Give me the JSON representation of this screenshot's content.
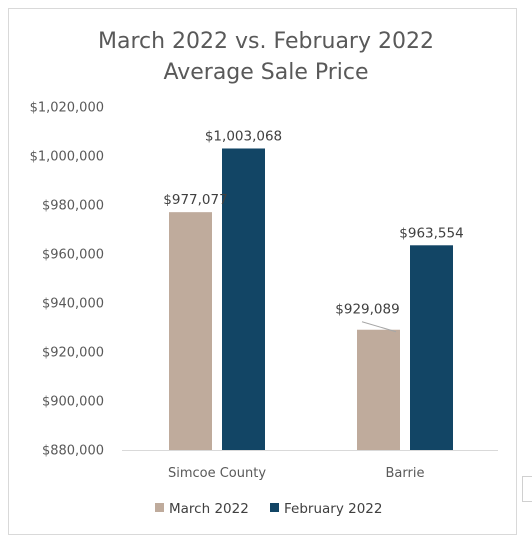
{
  "chart_data": {
    "type": "bar",
    "title_lines": [
      "March 2022 vs. February 2022",
      "Average Sale Price"
    ],
    "categories": [
      "Simcoe County",
      "Barrie"
    ],
    "series": [
      {
        "name": "March 2022",
        "color": "#bfab9c",
        "values": [
          977077,
          929089
        ],
        "labels": [
          "$977,077",
          "$929,089"
        ]
      },
      {
        "name": "February 2022",
        "color": "#124565",
        "values": [
          1003068,
          963554
        ],
        "labels": [
          "$1,003,068",
          "$963,554"
        ]
      }
    ],
    "ylim": [
      880000,
      1020000
    ],
    "y_ticks": [
      880000,
      900000,
      920000,
      940000,
      960000,
      980000,
      1000000,
      1020000
    ],
    "y_tick_labels": [
      "$880,000",
      "$900,000",
      "$920,000",
      "$940,000",
      "$960,000",
      "$980,000",
      "$1,000,000",
      "$1,020,000"
    ],
    "grid": false,
    "legend_position": "bottom",
    "xlabel": "",
    "ylabel": ""
  }
}
